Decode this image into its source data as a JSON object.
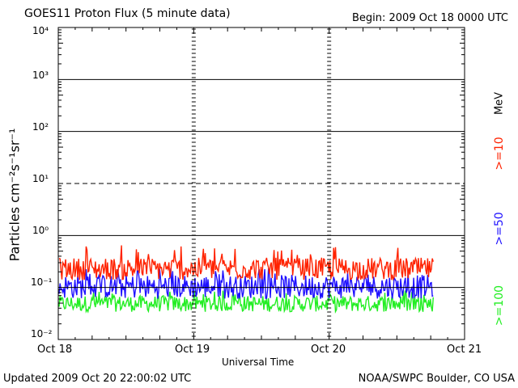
{
  "header": {
    "title": "GOES11 Proton Flux (5 minute data)",
    "begin": "Begin: 2009 Oct 18 0000 UTC"
  },
  "footer": {
    "updated": "Updated 2009 Oct 20 22:00:02 UTC",
    "credit": "NOAA/SWPC Boulder, CO USA"
  },
  "chart_data": {
    "type": "line",
    "title": "GOES11 Proton Flux (5 minute data)",
    "xlabel": "Universal Time",
    "ylabel": "Particles cm⁻²s⁻¹sr⁻¹",
    "y_scale": "log",
    "ylim": [
      0.01,
      10000
    ],
    "x_ticks": [
      "Oct 18",
      "Oct 19",
      "Oct 20",
      "Oct 21"
    ],
    "y_ticks": [
      "10⁻²",
      "10⁻¹",
      "10⁰",
      "10¹",
      "10²",
      "10³",
      "10⁴"
    ],
    "xlim": [
      "2009-10-18 00:00",
      "2009-10-21 00:00"
    ],
    "data_end": "2009-10-20 20:00",
    "unit_label": "MeV",
    "dashed_levels": [
      10
    ],
    "solid_levels": [
      0.1,
      1,
      100,
      1000
    ],
    "series": [
      {
        "name": ">=10",
        "color": "#ff2200",
        "typical": 0.22,
        "low": 0.12,
        "high": 0.65
      },
      {
        "name": ">=50",
        "color": "#1e10ff",
        "typical": 0.11,
        "low": 0.05,
        "high": 0.24
      },
      {
        "name": ">=100",
        "color": "#22ee22",
        "typical": 0.05,
        "low": 0.03,
        "high": 0.09
      }
    ]
  }
}
